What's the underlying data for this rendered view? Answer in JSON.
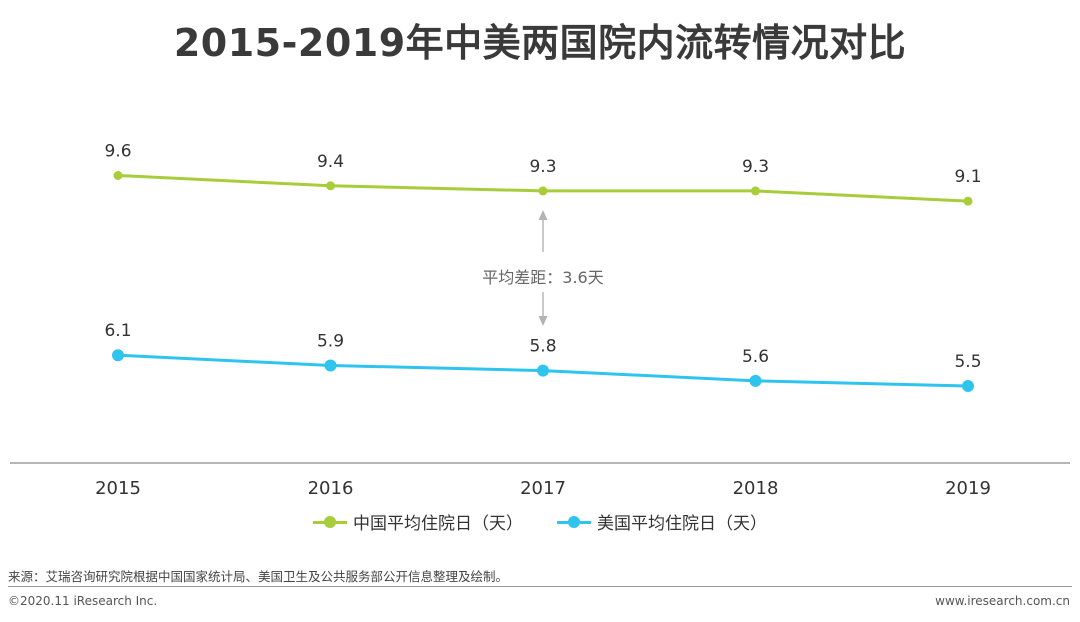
{
  "title": "2015-2019年中美两国院内流转情况对比",
  "chart_data": {
    "type": "line",
    "title": "2015-2019年中美两国院内流转情况对比",
    "categories": [
      "2015",
      "2016",
      "2017",
      "2018",
      "2019"
    ],
    "series": [
      {
        "name": "中国平均住院日（天）",
        "values": [
          9.6,
          9.4,
          9.3,
          9.3,
          9.1
        ],
        "labels": [
          "9.6",
          "9.4",
          "9.3",
          "9.3",
          "9.1"
        ],
        "color": "#a8cd3a"
      },
      {
        "name": "美国平均住院日（天）",
        "values": [
          6.1,
          5.9,
          5.8,
          5.6,
          5.5
        ],
        "labels": [
          "6.1",
          "5.9",
          "5.8",
          "5.6",
          "5.5"
        ],
        "color": "#2ec4ee"
      }
    ],
    "annotation": "平均差距：3.6天",
    "xlabel": "",
    "ylabel": "",
    "ylim": [
      4,
      10.5
    ],
    "legend_position": "bottom"
  },
  "footer": {
    "source": "来源：艾瑞咨询研究院根据中国国家统计局、美国卫生及公共服务部公开信息整理及绘制。",
    "copyright": "©2020.11 iResearch Inc.",
    "website": "www.iresearch.com.cn"
  }
}
